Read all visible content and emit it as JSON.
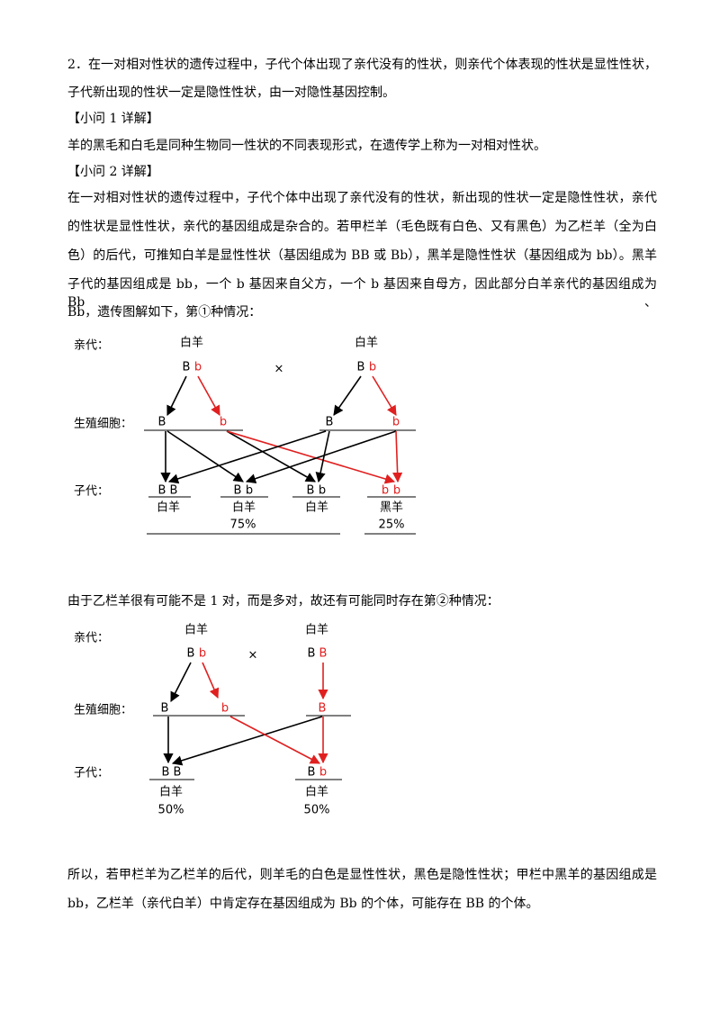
{
  "intro": {
    "lines": [
      "2．在一对相对性状的遗传过程中，子代个体出现了亲代没有的性状，则亲代个体表现的性状是显性性状，",
      "子代新出现的性状一定是隐性性状，由一对隐性基因控制。"
    ]
  },
  "sub1": {
    "heading": "【小问 1 详解】",
    "lines": [
      "羊的黑毛和白毛是同种生物同一性状的不同表现形式，在遗传学上称为一对相对性状。"
    ]
  },
  "sub2": {
    "heading": "【小问 2 详解】",
    "lines": [
      "在一对相对性状的遗传过程中，子代个体中出现了亲代没有的性状，新出现的性状一定是隐性性状，亲代",
      "的性状是显性性状，亲代的基因组成是杂合的。若甲栏羊（毛色既有白色、又有黑色）为乙栏羊（全为白",
      "色）的后代，可推知白羊是显性性状（基因组成为 BB 或 Bb），黑羊是隐性性状（基因组成为 bb）。黑羊",
      "子代的基因组成是 bb，一个 b 基因来自父方，一个 b 基因来自母方，因此部分白羊亲代的基因组成为 Bb、",
      "Bb，遗传图解如下，第①种情况："
    ]
  },
  "diagram1": {
    "parent_label": "亲代：",
    "parents": [
      {
        "phenotype": "白羊",
        "alleles": [
          "B",
          "b"
        ]
      },
      {
        "phenotype": "白羊",
        "alleles": [
          "B",
          "b"
        ]
      }
    ],
    "cross": "×",
    "gamete_label": "生殖细胞：",
    "gametes": [
      "B",
      "b",
      "B",
      "b"
    ],
    "offspring_label": "子代：",
    "offspring": [
      {
        "alleles": [
          "B",
          "B"
        ],
        "phenotype": "白羊"
      },
      {
        "alleles": [
          "B",
          "b"
        ],
        "phenotype": "白羊"
      },
      {
        "alleles": [
          "B",
          "b"
        ],
        "phenotype": "白羊"
      },
      {
        "alleles": [
          "b",
          "b"
        ],
        "phenotype": "黑羊"
      }
    ],
    "ratios": [
      "75%",
      "25%"
    ]
  },
  "transition": {
    "lines": [
      "由于乙栏羊很有可能不是 1 对，而是多对，故还有可能同时存在第②种情况："
    ]
  },
  "diagram2": {
    "parent_label": "亲代：",
    "parents": [
      {
        "phenotype": "白羊",
        "alleles": [
          "B",
          "b"
        ]
      },
      {
        "phenotype": "白羊",
        "alleles": [
          "B",
          "B"
        ]
      }
    ],
    "cross": "×",
    "gamete_label": "生殖细胞：",
    "gametes": [
      "B",
      "b",
      "B"
    ],
    "offspring_label": "子代：",
    "offspring": [
      {
        "alleles": [
          "B",
          "B"
        ],
        "phenotype": "白羊"
      },
      {
        "alleles": [
          "B",
          "b"
        ],
        "phenotype": "白羊"
      }
    ],
    "ratios": [
      "50%",
      "50%"
    ]
  },
  "conclusion": {
    "lines": [
      "所以，若甲栏羊为乙栏羊的后代，则羊毛的白色是显性性状，黑色是隐性性状；甲栏中黑羊的基因组成是",
      "bb，乙栏羊（亲代白羊）中肯定存在基因组成为 Bb 的个体，可能存在 BB 的个体。"
    ]
  }
}
